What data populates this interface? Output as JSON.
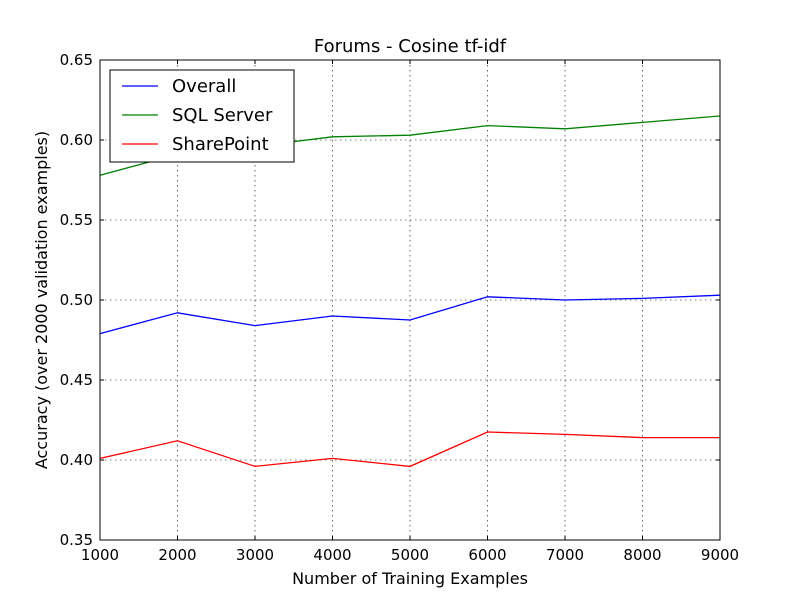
{
  "chart_data": {
    "type": "line",
    "title": "Forums - Cosine tf-idf",
    "xlabel": "Number of Training Examples",
    "ylabel": "Accuracy (over 2000 validation examples)",
    "xlim": [
      1000,
      9000
    ],
    "ylim": [
      0.35,
      0.65
    ],
    "x": [
      1000,
      2000,
      3000,
      4000,
      5000,
      6000,
      7000,
      8000,
      9000
    ],
    "x_ticks": [
      "1000",
      "2000",
      "3000",
      "4000",
      "5000",
      "6000",
      "7000",
      "8000",
      "9000"
    ],
    "y_ticks": [
      0.35,
      0.4,
      0.45,
      0.5,
      0.55,
      0.6,
      0.65
    ],
    "y_tick_labels": [
      "0.35",
      "0.40",
      "0.45",
      "0.50",
      "0.55",
      "0.60",
      "0.65"
    ],
    "grid": true,
    "legend_position": "top-left",
    "series": [
      {
        "name": "Overall",
        "color": "#0000ff",
        "values": [
          0.479,
          0.492,
          0.484,
          0.49,
          0.4875,
          0.502,
          0.5,
          0.501,
          0.503
        ]
      },
      {
        "name": "SQL Server",
        "color": "#008000",
        "values": [
          0.578,
          0.591,
          0.596,
          0.602,
          0.603,
          0.609,
          0.607,
          0.611,
          0.615
        ]
      },
      {
        "name": "SharePoint",
        "color": "#ff0000",
        "values": [
          0.401,
          0.412,
          0.396,
          0.401,
          0.396,
          0.4175,
          0.416,
          0.414,
          0.414
        ]
      }
    ]
  }
}
